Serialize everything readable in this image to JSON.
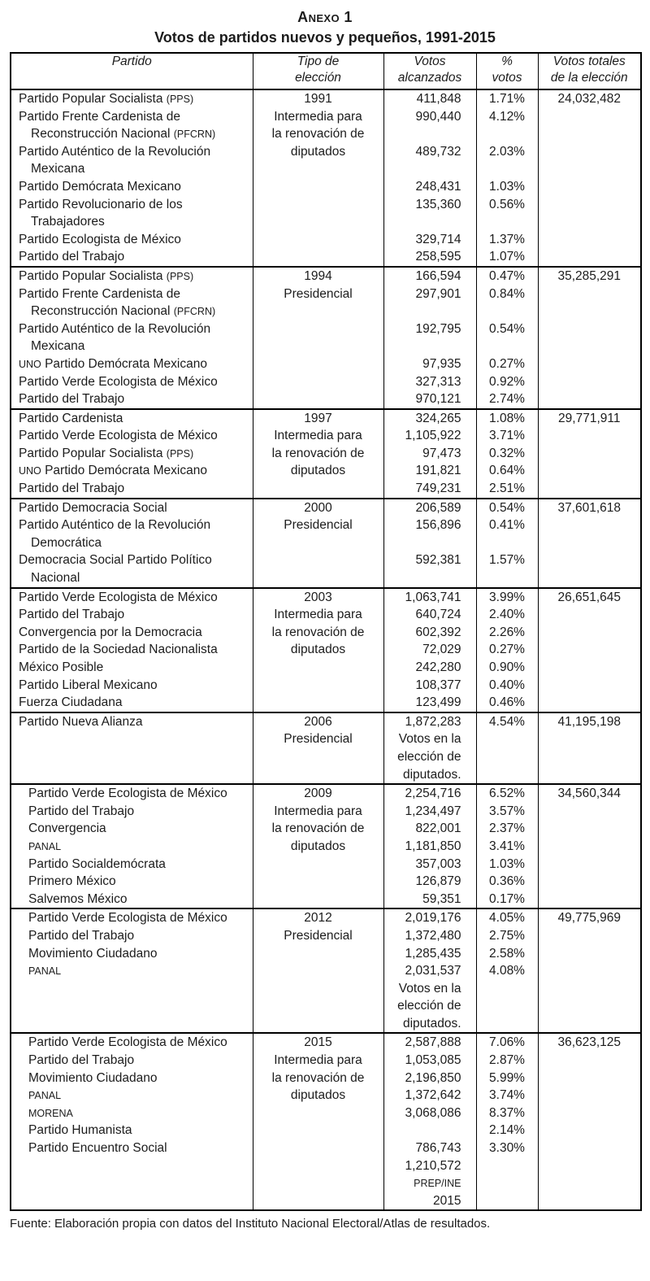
{
  "page": {
    "title": "Anexo 1",
    "subtitle": "Votos de partidos nuevos y pequeños, 1991-2015",
    "source": "Fuente: Elaboración propia con datos del Instituto Nacional Electoral/Atlas de resultados."
  },
  "acronym_patterns": [
    "(PPS)",
    "(PFCRN)",
    "UNO",
    "PANAL",
    "MORENA",
    "PREP/INE"
  ],
  "table": {
    "headers": {
      "partido": "Partido",
      "tipo": "Tipo de\nelección",
      "votos": "Votos\nalcanzados",
      "pct": "%\nvotos",
      "total": "Votos totales\nde la elección"
    },
    "sections": [
      {
        "year": "1991",
        "wide_indent": false,
        "party_lines": [
          {
            "t": "Partido Popular Socialista (PPS)"
          },
          {
            "t": "Partido Frente Cardenista de"
          },
          {
            "t": "Reconstrucción Nacional (PFCRN)",
            "c": true
          },
          {
            "t": "Partido Auténtico de la Revolución"
          },
          {
            "t": "Mexicana",
            "c": true
          },
          {
            "t": "Partido Demócrata Mexicano"
          },
          {
            "t": "Partido Revolucionario de los"
          },
          {
            "t": "Trabajadores",
            "c": true
          },
          {
            "t": "Partido Ecologista de México"
          },
          {
            "t": "Partido del Trabajo"
          }
        ],
        "tipo_lines": [
          "1991",
          "Intermedia para",
          "la renovación de",
          "diputados"
        ],
        "votes_lines": [
          "411,848",
          "990,440",
          "",
          "489,732",
          "",
          "248,431",
          "135,360",
          "",
          "329,714",
          "258,595"
        ],
        "pct_lines": [
          "1.71%",
          "4.12%",
          "",
          "2.03%",
          "",
          "1.03%",
          "0.56%",
          "",
          "1.37%",
          "1.07%"
        ],
        "total": "24,032,482"
      },
      {
        "year": "1994",
        "wide_indent": false,
        "party_lines": [
          {
            "t": "Partido Popular Socialista (PPS)"
          },
          {
            "t": "Partido Frente Cardenista de"
          },
          {
            "t": "Reconstrucción Nacional (PFCRN)",
            "c": true
          },
          {
            "t": "Partido Auténtico de la Revolución"
          },
          {
            "t": "Mexicana",
            "c": true
          },
          {
            "t": "UNO Partido Demócrata Mexicano"
          },
          {
            "t": "Partido Verde Ecologista de México"
          },
          {
            "t": "Partido del Trabajo"
          }
        ],
        "tipo_lines": [
          "1994",
          "Presidencial"
        ],
        "votes_lines": [
          "166,594",
          "297,901",
          "",
          "192,795",
          "",
          "97,935",
          "327,313",
          "970,121"
        ],
        "pct_lines": [
          "0.47%",
          "0.84%",
          "",
          "0.54%",
          "",
          "0.27%",
          "0.92%",
          "2.74%"
        ],
        "total": "35,285,291"
      },
      {
        "year": "1997",
        "wide_indent": false,
        "party_lines": [
          {
            "t": "Partido Cardenista"
          },
          {
            "t": "Partido Verde Ecologista de México"
          },
          {
            "t": "Partido Popular Socialista (PPS)"
          },
          {
            "t": "UNO Partido Demócrata Mexicano"
          },
          {
            "t": "Partido del Trabajo"
          }
        ],
        "tipo_lines": [
          "1997",
          "Intermedia para",
          "la renovación de",
          "diputados"
        ],
        "votes_lines": [
          "324,265",
          "1,105,922",
          "97,473",
          "191,821",
          "749,231"
        ],
        "pct_lines": [
          "1.08%",
          "3.71%",
          "0.32%",
          "0.64%",
          "2.51%"
        ],
        "total": "29,771,911"
      },
      {
        "year": "2000",
        "wide_indent": false,
        "party_lines": [
          {
            "t": "Partido Democracia Social"
          },
          {
            "t": "Partido Auténtico de la Revolución"
          },
          {
            "t": "Democrática",
            "c": true
          },
          {
            "t": "Democracia Social Partido Político"
          },
          {
            "t": "Nacional",
            "c": true
          }
        ],
        "tipo_lines": [
          "2000",
          "Presidencial"
        ],
        "votes_lines": [
          "206,589",
          "156,896",
          "",
          "592,381"
        ],
        "pct_lines": [
          "0.54%",
          "0.41%",
          "",
          "1.57%"
        ],
        "total": "37,601,618"
      },
      {
        "year": "2003",
        "wide_indent": false,
        "party_lines": [
          {
            "t": "Partido Verde Ecologista de México"
          },
          {
            "t": "Partido del Trabajo"
          },
          {
            "t": "Convergencia por la Democracia"
          },
          {
            "t": "Partido de la Sociedad Nacionalista"
          },
          {
            "t": "México Posible"
          },
          {
            "t": "Partido Liberal Mexicano"
          },
          {
            "t": "Fuerza Ciudadana"
          }
        ],
        "tipo_lines": [
          "2003",
          "Intermedia para",
          "la renovación de",
          "diputados"
        ],
        "votes_lines": [
          "1,063,741",
          "640,724",
          "602,392",
          "72,029",
          "242,280",
          "108,377",
          "123,499"
        ],
        "pct_lines": [
          "3.99%",
          "2.40%",
          "2.26%",
          "0.27%",
          "0.90%",
          "0.40%",
          "0.46%"
        ],
        "total": "26,651,645"
      },
      {
        "year": "2006",
        "wide_indent": false,
        "party_lines": [
          {
            "t": "Partido Nueva Alianza"
          }
        ],
        "tipo_lines": [
          "2006",
          "Presidencial"
        ],
        "votes_lines": [
          "1,872,283",
          "Votos en la",
          "elección de",
          "diputados."
        ],
        "pct_lines": [
          "4.54%"
        ],
        "total": "41,195,198"
      },
      {
        "year": "2009",
        "wide_indent": true,
        "party_lines": [
          {
            "t": "Partido Verde Ecologista de México"
          },
          {
            "t": "Partido del Trabajo"
          },
          {
            "t": "Convergencia"
          },
          {
            "t": "PANAL"
          },
          {
            "t": "Partido Socialdemócrata"
          },
          {
            "t": "Primero México"
          },
          {
            "t": "Salvemos México"
          }
        ],
        "tipo_lines": [
          "2009",
          "Intermedia para",
          "la renovación de",
          "diputados"
        ],
        "votes_lines": [
          "2,254,716",
          "1,234,497",
          "822,001",
          "1,181,850",
          "357,003",
          "126,879",
          "59,351"
        ],
        "pct_lines": [
          "6.52%",
          "3.57%",
          "2.37%",
          "3.41%",
          "1.03%",
          "0.36%",
          "0.17%"
        ],
        "total": "34,560,344"
      },
      {
        "year": "2012",
        "wide_indent": true,
        "party_lines": [
          {
            "t": "Partido Verde Ecologista de México"
          },
          {
            "t": "Partido del Trabajo"
          },
          {
            "t": "Movimiento Ciudadano"
          },
          {
            "t": "PANAL"
          }
        ],
        "tipo_lines": [
          "2012",
          "Presidencial"
        ],
        "votes_lines": [
          "2,019,176",
          "1,372,480",
          "1,285,435",
          "2,031,537",
          "Votos en la",
          "elección de",
          "diputados."
        ],
        "pct_lines": [
          "4.05%",
          "2.75%",
          "2.58%",
          "4.08%"
        ],
        "total": "49,775,969"
      },
      {
        "year": "2015",
        "wide_indent": true,
        "party_lines": [
          {
            "t": "Partido Verde Ecologista de México"
          },
          {
            "t": "Partido del Trabajo"
          },
          {
            "t": "Movimiento Ciudadano"
          },
          {
            "t": "PANAL"
          },
          {
            "t": "MORENA"
          },
          {
            "t": "Partido Humanista"
          },
          {
            "t": "Partido Encuentro Social"
          }
        ],
        "tipo_lines": [
          "2015",
          "Intermedia para",
          "la renovación de",
          "diputados"
        ],
        "votes_lines": [
          "2,587,888",
          "1,053,085",
          "2,196,850",
          "1,372,642",
          "3,068,086",
          "",
          "786,743",
          "1,210,572",
          "PREP/INE",
          "2015"
        ],
        "pct_lines": [
          "7.06%",
          "2.87%",
          "5.99%",
          "3.74%",
          "8.37%",
          "2.14%",
          "3.30%"
        ],
        "total": "36,623,125"
      }
    ]
  }
}
